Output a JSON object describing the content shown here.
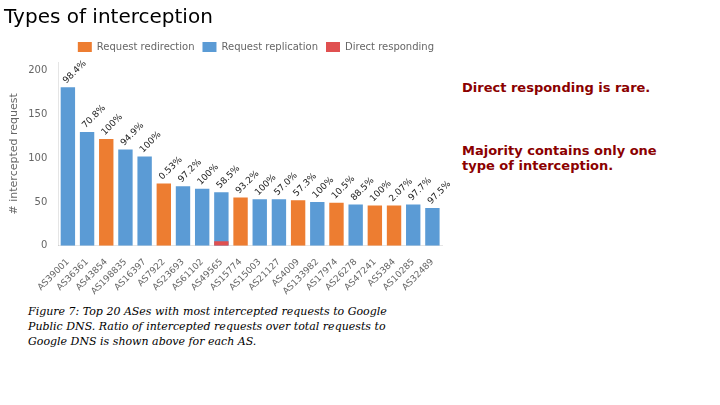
{
  "chart_data": {
    "type": "bar",
    "title": "Types of interception",
    "ylabel": "# intercepted request",
    "categories": [
      "AS39001",
      "AS36361",
      "AS43854",
      "AS198835",
      "AS16397",
      "AS7922",
      "AS23693",
      "AS61102",
      "AS49565",
      "AS15774",
      "AS15003",
      "AS21127",
      "AS4009",
      "AS133982",
      "AS17974",
      "AS26278",
      "AS47241",
      "AS5384",
      "AS10285",
      "AS32489"
    ],
    "series": [
      {
        "name": "Request redirection",
        "color": "#ed7d31",
        "values": [
          0,
          0,
          122,
          0,
          0,
          71,
          0,
          0,
          0,
          55,
          0,
          0,
          52,
          0,
          49,
          0,
          46,
          46,
          0,
          0
        ]
      },
      {
        "name": "Request replication",
        "color": "#5b9bd5",
        "values": [
          181,
          130,
          0,
          110,
          102,
          0,
          68,
          65,
          61,
          0,
          53,
          53,
          0,
          50,
          0,
          47,
          0,
          0,
          47,
          43
        ]
      },
      {
        "name": "Direct responding",
        "color": "#e05050",
        "values": [
          0,
          0,
          0,
          0,
          0,
          0,
          0,
          0,
          5,
          0,
          0,
          0,
          0,
          0,
          0,
          0,
          0,
          0,
          0,
          0
        ]
      }
    ],
    "ratio_labels": [
      "98.4%",
      "70.8%",
      "100%",
      "94.9%",
      "100%",
      "0.53%",
      "97.2%",
      "100%",
      "58.5%",
      "93.2%",
      "100%",
      "57.0%",
      "57.3%",
      "100%",
      "10.5%",
      "88.5%",
      "100%",
      "2.07%",
      "97.7%",
      "97.5%"
    ],
    "annotations": [
      {
        "text": "Direct responding is rare.",
        "color": "#8b0000"
      },
      {
        "text": "Majority contains only one\ntype of interception.",
        "color": "#8b0000"
      }
    ],
    "caption": "Figure 7: Top 20 ASes with most intercepted requests to Google\nPublic DNS. Ratio of intercepted requests over total requests to\nGoogle DNS is shown above for each AS.",
    "ylim": [
      0,
      210
    ],
    "yticks": [
      0,
      50,
      100,
      150,
      200
    ],
    "grid": false,
    "stacked": false,
    "legend": "upper right"
  }
}
